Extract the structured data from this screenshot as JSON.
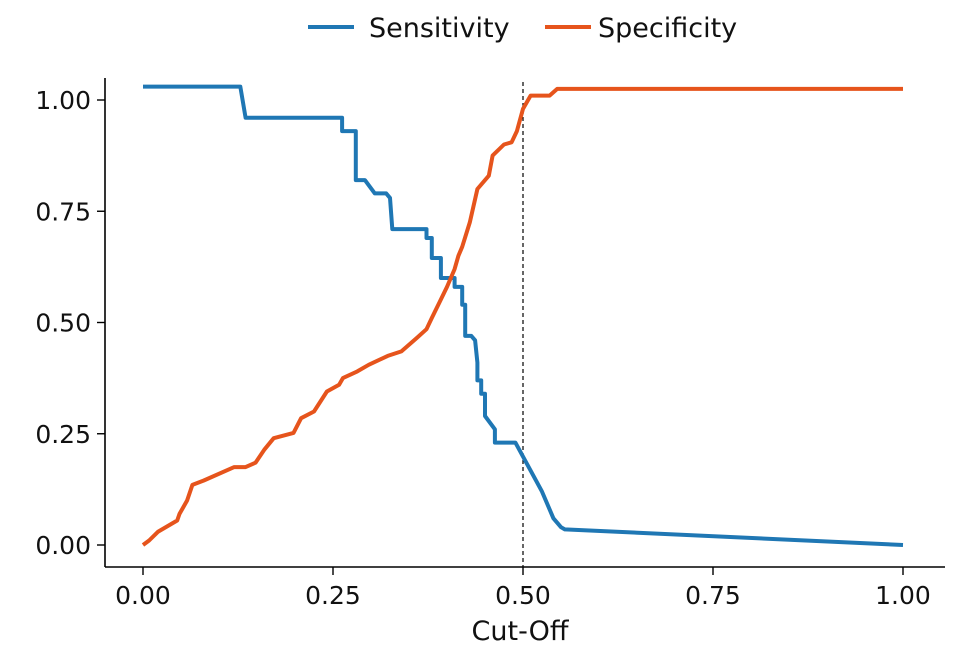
{
  "chart_data": {
    "type": "line",
    "xlabel": "Cut-Off",
    "ylabel": "",
    "xlim": [
      -0.05,
      1.05
    ],
    "ylim": [
      -0.05,
      1.05
    ],
    "x_ticks": [
      "0.00",
      "0.25",
      "0.50",
      "0.75",
      "1.00"
    ],
    "y_ticks": [
      "0.00",
      "0.25",
      "0.50",
      "0.75",
      "1.00"
    ],
    "x_tick_values": [
      0,
      0.25,
      0.5,
      0.75,
      1.0
    ],
    "y_tick_values": [
      0,
      0.25,
      0.5,
      0.75,
      1.0
    ],
    "legend_position": "top-center",
    "grid": false,
    "reference_line": {
      "type": "vertical",
      "x": 0.5,
      "style": "dashed"
    },
    "series": [
      {
        "name": "Sensitivity",
        "color": "#1f77b4",
        "points": [
          [
            0.0,
            1.03
          ],
          [
            0.128,
            1.03
          ],
          [
            0.135,
            0.96
          ],
          [
            0.262,
            0.96
          ],
          [
            0.262,
            0.93
          ],
          [
            0.28,
            0.93
          ],
          [
            0.28,
            0.82
          ],
          [
            0.292,
            0.82
          ],
          [
            0.305,
            0.79
          ],
          [
            0.32,
            0.79
          ],
          [
            0.325,
            0.78
          ],
          [
            0.328,
            0.71
          ],
          [
            0.373,
            0.71
          ],
          [
            0.373,
            0.69
          ],
          [
            0.38,
            0.69
          ],
          [
            0.38,
            0.645
          ],
          [
            0.392,
            0.645
          ],
          [
            0.392,
            0.6
          ],
          [
            0.41,
            0.6
          ],
          [
            0.41,
            0.58
          ],
          [
            0.42,
            0.58
          ],
          [
            0.42,
            0.54
          ],
          [
            0.424,
            0.54
          ],
          [
            0.424,
            0.47
          ],
          [
            0.432,
            0.47
          ],
          [
            0.437,
            0.46
          ],
          [
            0.44,
            0.41
          ],
          [
            0.44,
            0.37
          ],
          [
            0.445,
            0.37
          ],
          [
            0.445,
            0.34
          ],
          [
            0.45,
            0.34
          ],
          [
            0.45,
            0.29
          ],
          [
            0.463,
            0.26
          ],
          [
            0.463,
            0.23
          ],
          [
            0.49,
            0.23
          ],
          [
            0.525,
            0.12
          ],
          [
            0.54,
            0.06
          ],
          [
            0.55,
            0.04
          ],
          [
            0.555,
            0.035
          ],
          [
            1.0,
            0.0
          ]
        ]
      },
      {
        "name": "Specificity",
        "color": "#e6541c",
        "points": [
          [
            0.0,
            0.0
          ],
          [
            0.008,
            0.01
          ],
          [
            0.02,
            0.03
          ],
          [
            0.045,
            0.055
          ],
          [
            0.048,
            0.07
          ],
          [
            0.058,
            0.1
          ],
          [
            0.065,
            0.135
          ],
          [
            0.08,
            0.145
          ],
          [
            0.12,
            0.175
          ],
          [
            0.135,
            0.175
          ],
          [
            0.148,
            0.185
          ],
          [
            0.16,
            0.215
          ],
          [
            0.172,
            0.24
          ],
          [
            0.198,
            0.252
          ],
          [
            0.208,
            0.285
          ],
          [
            0.225,
            0.3
          ],
          [
            0.242,
            0.345
          ],
          [
            0.258,
            0.36
          ],
          [
            0.263,
            0.375
          ],
          [
            0.282,
            0.39
          ],
          [
            0.297,
            0.405
          ],
          [
            0.322,
            0.425
          ],
          [
            0.34,
            0.435
          ],
          [
            0.36,
            0.465
          ],
          [
            0.373,
            0.485
          ],
          [
            0.38,
            0.51
          ],
          [
            0.39,
            0.545
          ],
          [
            0.4,
            0.58
          ],
          [
            0.41,
            0.62
          ],
          [
            0.415,
            0.65
          ],
          [
            0.42,
            0.67
          ],
          [
            0.43,
            0.725
          ],
          [
            0.44,
            0.8
          ],
          [
            0.455,
            0.83
          ],
          [
            0.46,
            0.875
          ],
          [
            0.475,
            0.9
          ],
          [
            0.485,
            0.905
          ],
          [
            0.492,
            0.93
          ],
          [
            0.5,
            0.98
          ],
          [
            0.51,
            1.01
          ],
          [
            0.535,
            1.01
          ],
          [
            0.545,
            1.025
          ],
          [
            1.0,
            1.025
          ]
        ]
      }
    ]
  }
}
